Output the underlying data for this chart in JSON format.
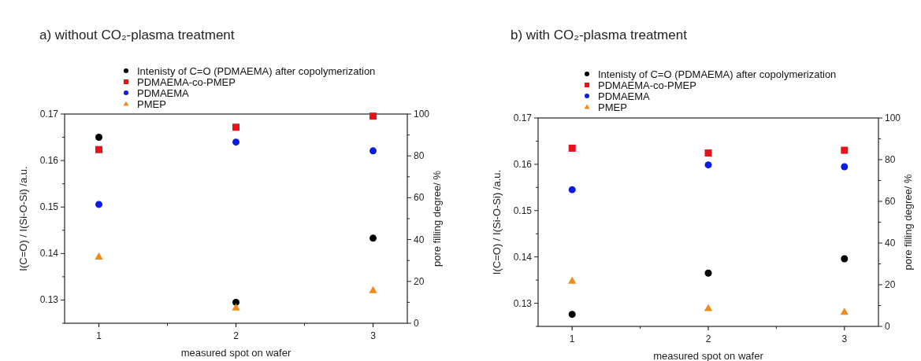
{
  "chart_data": [
    {
      "type": "scatter",
      "title": "a) without CO₂-plasma treatment",
      "xlabel": "measured spot on wafer",
      "ylabel": "I(C=O) / I(Si-O-Si) /a.u.",
      "y2label": "pore filling degree/ %",
      "x": [
        1,
        2,
        3
      ],
      "xlim": [
        0.75,
        3.25
      ],
      "xticks": [
        1,
        2,
        3
      ],
      "ylim": [
        0.125,
        0.17
      ],
      "yticks": [
        {
          "value": 0.125,
          "label": null
        },
        0.13,
        {
          "value": 0.135,
          "label": null
        },
        0.14,
        {
          "value": 0.145,
          "label": null
        },
        0.15,
        {
          "value": 0.155,
          "label": null
        },
        0.16,
        {
          "value": 0.165,
          "label": null
        },
        0.17
      ],
      "y2lim": [
        0,
        100
      ],
      "y2ticks": [
        0,
        {
          "value": 10,
          "label": null
        },
        20,
        {
          "value": 30,
          "label": null
        },
        40,
        {
          "value": 50,
          "label": null
        },
        60,
        {
          "value": 70,
          "label": null
        },
        80,
        {
          "value": 90,
          "label": null
        },
        100
      ],
      "legend": "top",
      "grid": false,
      "series": [
        {
          "name": "Intenisty of C=O (PDMAEMA) after copolymerization",
          "color": "#000000",
          "marker": "circle",
          "values": [
            0.165,
            0.1295,
            0.1433
          ]
        },
        {
          "name": "PDMAEMA-co-PMEP",
          "color": "#e8121b",
          "marker": "square",
          "axis": "y2",
          "values": [
            83,
            93.7,
            99
          ]
        },
        {
          "name": "PDMAEMA",
          "color": "#0a1be6",
          "marker": "circle",
          "axis": "y2",
          "values": [
            56.8,
            86.6,
            82.4
          ]
        },
        {
          "name": "PMEP",
          "color": "#f28a1a",
          "marker": "triangle",
          "axis": "y2",
          "values": [
            31.8,
            7.5,
            15.7
          ]
        }
      ]
    },
    {
      "type": "scatter",
      "title": "b)    with CO₂-plasma treatment",
      "xlabel": "measured spot on wafer",
      "ylabel": "I(C=O) / I(Si-O-Si) /a.u.",
      "y2label": "pore filling degree/ %",
      "x": [
        1,
        2,
        3
      ],
      "xlim": [
        0.75,
        3.25
      ],
      "xticks": [
        1,
        2,
        3
      ],
      "ylim": [
        0.125,
        0.17
      ],
      "yticks": [
        {
          "value": 0.125,
          "label": null
        },
        0.13,
        {
          "value": 0.135,
          "label": null
        },
        0.14,
        {
          "value": 0.145,
          "label": null
        },
        0.15,
        {
          "value": 0.155,
          "label": null
        },
        0.16,
        {
          "value": 0.165,
          "label": null
        },
        0.17
      ],
      "y2lim": [
        0,
        100
      ],
      "y2ticks": [
        0,
        {
          "value": 10,
          "label": null
        },
        20,
        {
          "value": 30,
          "label": null
        },
        40,
        {
          "value": 50,
          "label": null
        },
        60,
        {
          "value": 70,
          "label": null
        },
        80,
        {
          "value": 90,
          "label": null
        },
        100
      ],
      "legend": "top",
      "grid": false,
      "series": [
        {
          "name": "Intenisty of C=O (PDMAEMA) after copolymerization",
          "color": "#000000",
          "marker": "circle",
          "values": [
            0.1276,
            0.1365,
            0.1396
          ]
        },
        {
          "name": "PDMAEMA-co-PMEP",
          "color": "#e8121b",
          "marker": "square",
          "axis": "y2",
          "values": [
            85.5,
            83.2,
            84.5
          ]
        },
        {
          "name": "PDMAEMA",
          "color": "#0a1be6",
          "marker": "circle",
          "axis": "y2",
          "values": [
            65.6,
            77.5,
            76.6
          ]
        },
        {
          "name": "PMEP",
          "color": "#f28a1a",
          "marker": "triangle",
          "axis": "y2",
          "values": [
            21.8,
            8.7,
            6.9
          ]
        }
      ]
    }
  ]
}
